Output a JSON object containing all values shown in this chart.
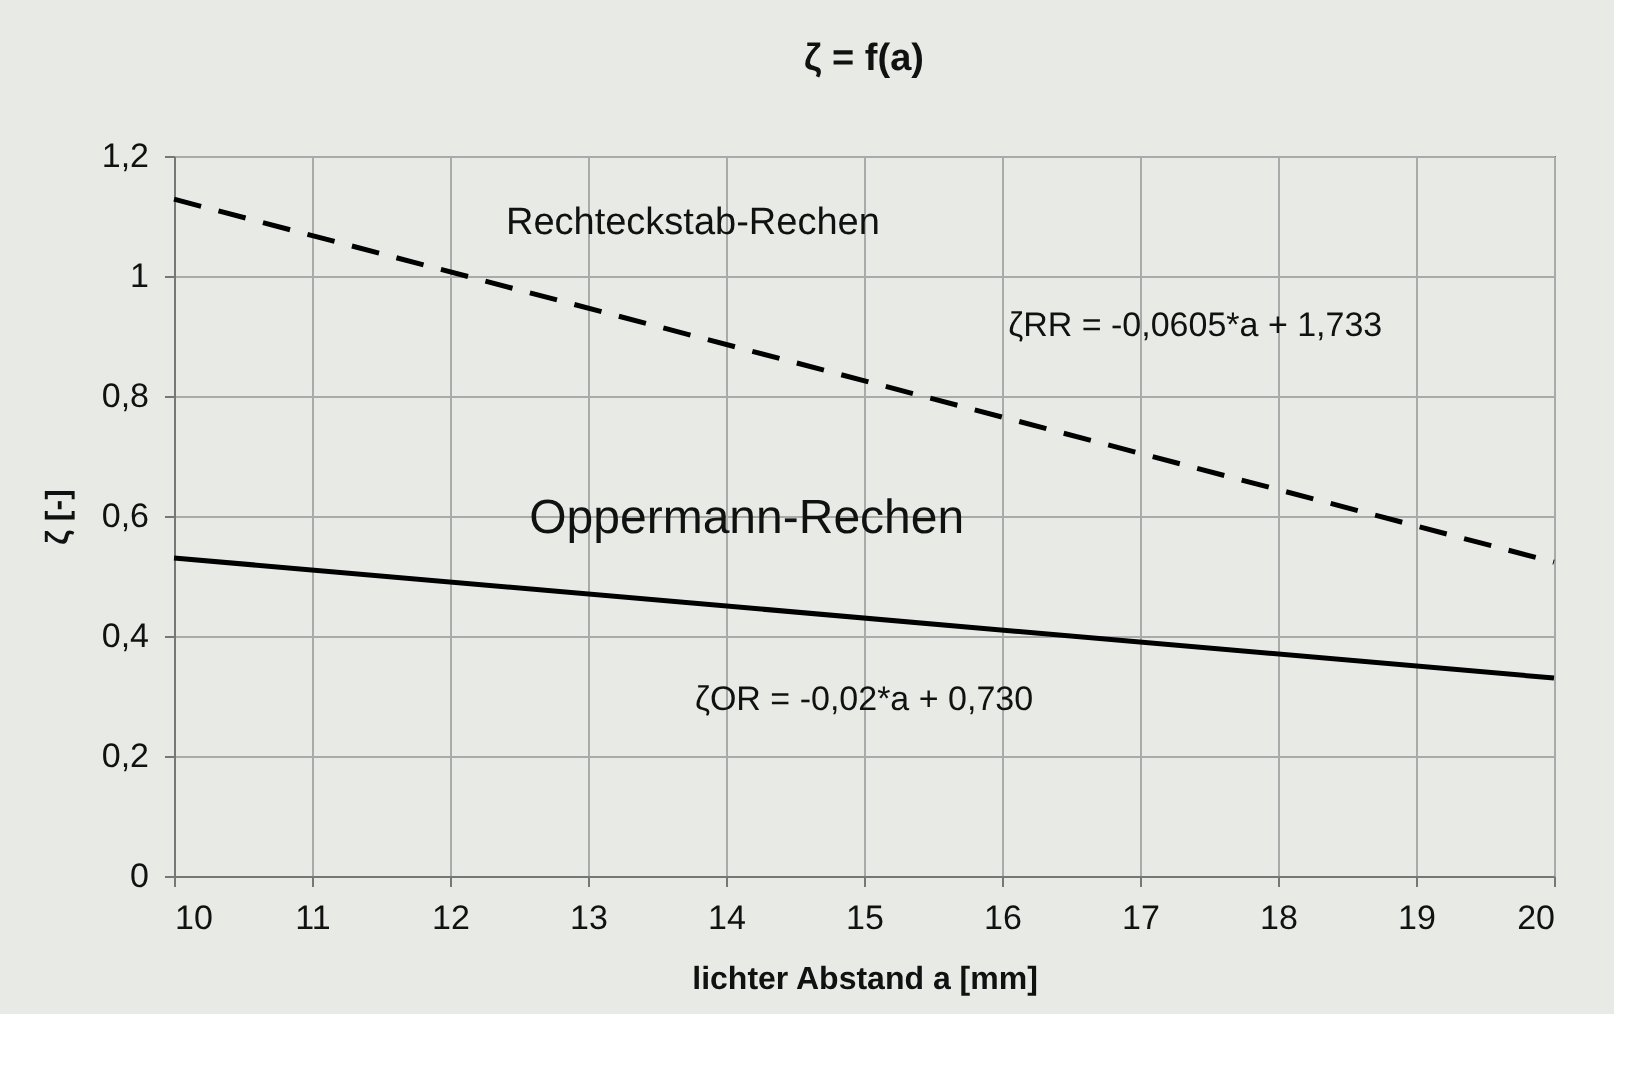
{
  "chart_data": {
    "type": "line",
    "title": "ζ =  f(a)",
    "xlabel": "lichter Abstand a [mm]",
    "ylabel": "ζ [-]",
    "x": [
      10,
      20
    ],
    "series": [
      {
        "name": "Rechteckstab-Rechen",
        "color": "#000000",
        "values": [
          1.128,
          0.523
        ],
        "line_style": "dashed"
      },
      {
        "name": "Oppermann-Rechen",
        "color": "#000000",
        "values": [
          0.53,
          0.33
        ],
        "line_style": "solid"
      }
    ],
    "annotations": [
      "ζRR =  -0,0605*a + 1,733",
      "ζOR =  -0,02*a +  0,730"
    ],
    "xlim": [
      10,
      20
    ],
    "xticks": [
      10,
      11,
      12,
      13,
      14,
      15,
      16,
      17,
      18,
      19,
      20
    ],
    "ylim": [
      0,
      1.2
    ],
    "yticks": [
      0,
      {
        "value": 0.2,
        "label": "0,2"
      },
      {
        "value": 0.4,
        "label": "0,4"
      },
      {
        "value": 0.6,
        "label": "0,6"
      },
      {
        "value": 0.8,
        "label": "0,8"
      },
      1,
      {
        "value": 1.2,
        "label": "1,2"
      }
    ],
    "grid": true,
    "marker": "none"
  }
}
